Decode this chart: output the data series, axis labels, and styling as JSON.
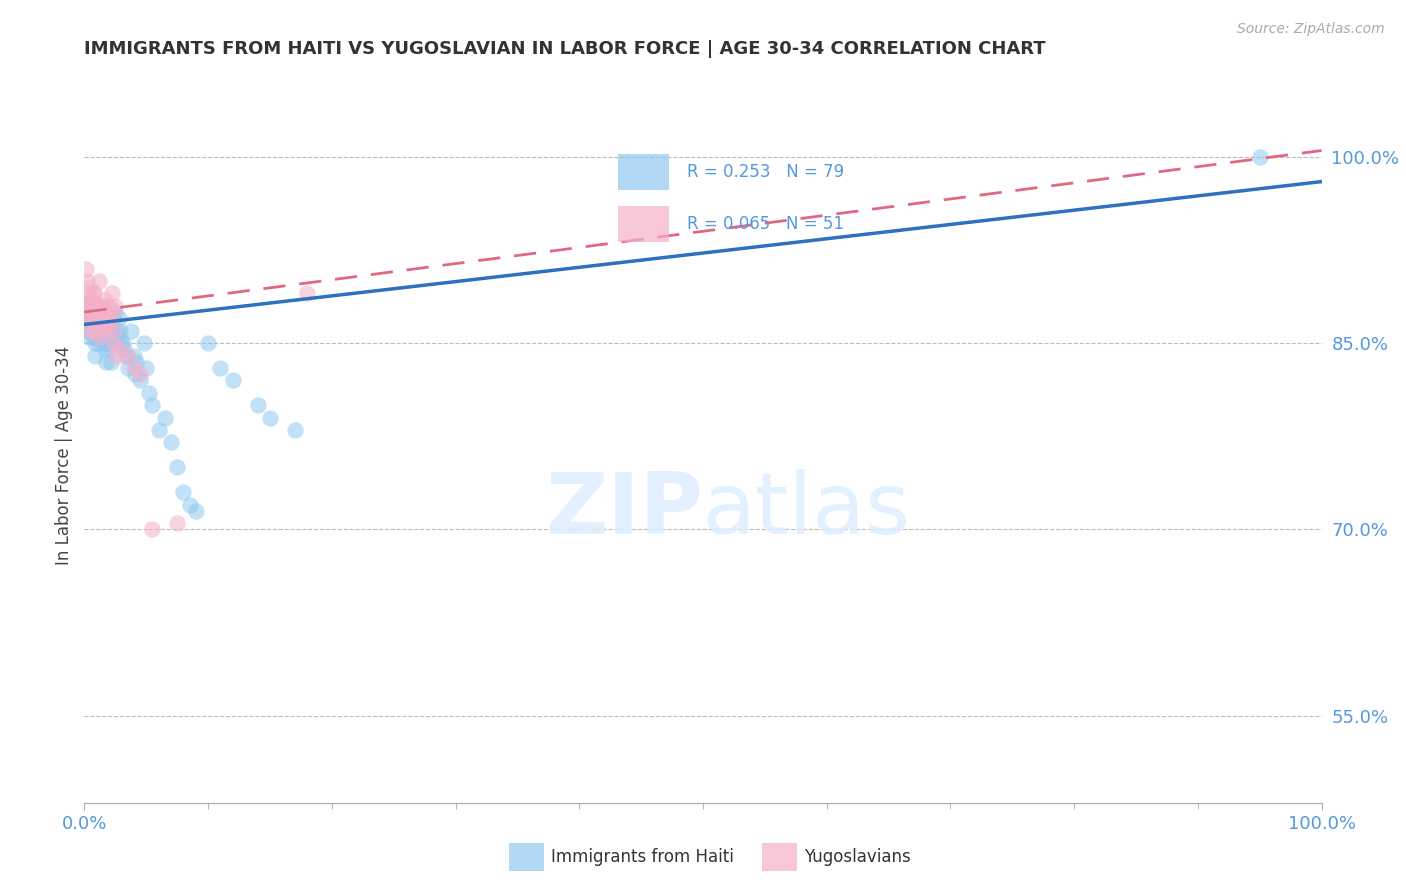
{
  "title": "IMMIGRANTS FROM HAITI VS YUGOSLAVIAN IN LABOR FORCE | AGE 30-34 CORRELATION CHART",
  "source": "Source: ZipAtlas.com",
  "ylabel": "In Labor Force | Age 30-34",
  "y_ticks": [
    55.0,
    70.0,
    85.0,
    100.0
  ],
  "y_tick_labels": [
    "55.0%",
    "70.0%",
    "85.0%",
    "100.0%"
  ],
  "x_range": [
    0.0,
    100.0
  ],
  "y_range": [
    48.0,
    104.0
  ],
  "haiti_R": 0.253,
  "haiti_N": 79,
  "yugo_R": 0.065,
  "yugo_N": 51,
  "haiti_color": "#90c8f0",
  "yugo_color": "#f5b0c8",
  "haiti_line_color": "#3070c0",
  "yugo_line_color": "#e06880",
  "legend_label_haiti": "Immigrants from Haiti",
  "legend_label_yugo": "Yugoslavians",
  "watermark_zip": "ZIP",
  "watermark_atlas": "atlas",
  "title_color": "#333333",
  "axis_label_color": "#5599dd",
  "haiti_line_x0": 0,
  "haiti_line_y0": 86.5,
  "haiti_line_x1": 100,
  "haiti_line_y1": 98.0,
  "yugo_line_x0": 0,
  "yugo_line_y0": 87.5,
  "yugo_line_x1": 100,
  "yugo_line_y1": 100.5,
  "haiti_scatter_x": [
    0.2,
    0.3,
    0.4,
    0.5,
    0.6,
    0.7,
    0.8,
    0.9,
    1.0,
    1.1,
    1.2,
    1.3,
    1.4,
    1.5,
    1.6,
    1.7,
    1.8,
    1.9,
    2.0,
    2.1,
    2.2,
    2.3,
    2.4,
    2.5,
    2.6,
    2.7,
    2.8,
    2.9,
    3.0,
    3.2,
    3.5,
    3.8,
    4.0,
    4.2,
    4.5,
    4.8,
    5.0,
    5.5,
    6.0,
    6.5,
    7.0,
    7.5,
    8.0,
    9.0,
    10.0,
    11.0,
    12.0,
    14.0,
    15.0,
    17.0,
    0.15,
    0.25,
    0.35,
    0.45,
    0.55,
    0.65,
    0.75,
    0.85,
    0.95,
    1.05,
    1.15,
    1.25,
    1.35,
    1.45,
    1.55,
    1.65,
    1.75,
    1.85,
    1.95,
    2.05,
    2.15,
    2.25,
    2.35,
    3.1,
    3.4,
    4.1,
    5.2,
    8.5,
    95.0
  ],
  "haiti_scatter_y": [
    87.0,
    86.0,
    85.5,
    86.5,
    87.5,
    88.0,
    86.0,
    85.0,
    87.0,
    86.5,
    86.0,
    87.0,
    85.5,
    88.0,
    86.0,
    87.5,
    85.0,
    86.0,
    87.0,
    86.0,
    85.5,
    87.0,
    86.0,
    87.5,
    86.0,
    85.5,
    87.0,
    86.0,
    85.0,
    84.5,
    83.0,
    86.0,
    84.0,
    83.5,
    82.0,
    85.0,
    83.0,
    80.0,
    78.0,
    79.0,
    77.0,
    75.0,
    73.0,
    71.5,
    85.0,
    83.0,
    82.0,
    80.0,
    79.0,
    78.0,
    88.0,
    87.0,
    86.0,
    88.5,
    87.0,
    86.5,
    85.5,
    84.0,
    86.0,
    87.0,
    85.0,
    86.5,
    85.5,
    86.0,
    85.0,
    84.5,
    83.5,
    85.0,
    86.0,
    84.5,
    83.5,
    85.5,
    86.0,
    85.0,
    84.0,
    82.5,
    81.0,
    72.0,
    100.0
  ],
  "yugo_scatter_x": [
    0.1,
    0.2,
    0.3,
    0.4,
    0.5,
    0.6,
    0.7,
    0.8,
    0.9,
    1.0,
    1.1,
    1.2,
    1.3,
    1.4,
    1.5,
    1.6,
    1.7,
    1.8,
    1.9,
    2.0,
    2.1,
    2.2,
    2.3,
    2.4,
    2.5,
    0.15,
    0.25,
    0.35,
    0.45,
    0.55,
    0.65,
    0.75,
    0.85,
    0.95,
    1.05,
    1.15,
    1.25,
    1.35,
    1.45,
    1.55,
    1.65,
    1.75,
    2.8,
    3.5,
    4.0,
    4.5,
    5.5,
    7.5,
    2.3,
    2.6,
    18.0
  ],
  "yugo_scatter_y": [
    87.5,
    88.0,
    87.0,
    89.0,
    88.5,
    87.5,
    86.0,
    89.0,
    87.0,
    88.0,
    86.5,
    90.0,
    87.0,
    88.0,
    87.5,
    86.5,
    88.5,
    87.0,
    86.5,
    87.0,
    88.0,
    89.0,
    87.5,
    86.0,
    88.0,
    91.0,
    90.0,
    89.5,
    88.5,
    86.0,
    87.0,
    89.0,
    88.0,
    87.5,
    86.0,
    87.5,
    85.5,
    88.0,
    87.0,
    86.5,
    87.5,
    86.0,
    84.5,
    84.0,
    83.0,
    82.5,
    70.0,
    70.5,
    85.0,
    84.0,
    89.0
  ]
}
